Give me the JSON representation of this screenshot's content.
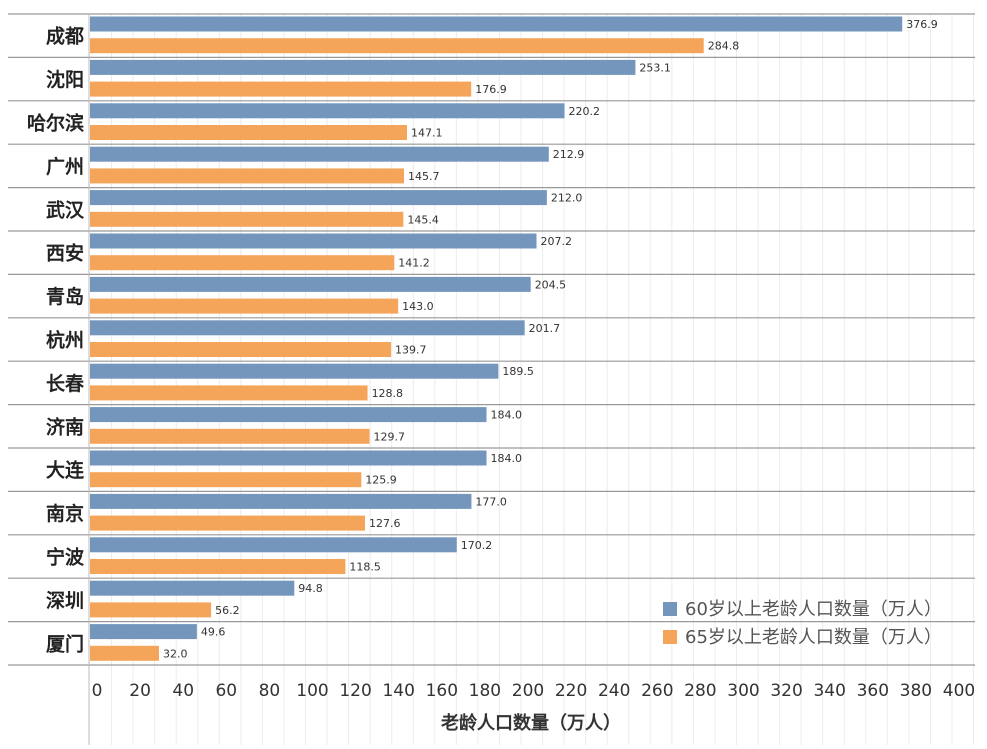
{
  "chart_data": {
    "type": "bar",
    "orientation": "horizontal",
    "categories": [
      "成都",
      "沈阳",
      "哈尔滨",
      "广州",
      "武汉",
      "西安",
      "青岛",
      "杭州",
      "长春",
      "济南",
      "大连",
      "南京",
      "宁波",
      "深圳",
      "厦门"
    ],
    "series": [
      {
        "name": "60岁以上老龄人口数量（万人）",
        "color": "#7496bd",
        "values": [
          376.9,
          253.1,
          220.2,
          212.9,
          212.0,
          207.2,
          204.5,
          201.7,
          189.5,
          184.0,
          184.0,
          177.0,
          170.2,
          94.8,
          49.6
        ]
      },
      {
        "name": "65岁以上老龄人口数量（万人）",
        "color": "#f5a55a",
        "values": [
          284.8,
          176.9,
          147.1,
          145.7,
          145.4,
          141.2,
          143.0,
          139.7,
          128.8,
          129.7,
          125.9,
          127.6,
          118.5,
          56.2,
          32.0
        ]
      }
    ],
    "xlabel": "老龄人口数量（万人）",
    "xlim": [
      0,
      400
    ],
    "xticks": [
      0,
      20,
      40,
      60,
      80,
      100,
      120,
      140,
      160,
      180,
      200,
      220,
      240,
      260,
      280,
      300,
      320,
      340,
      360,
      380,
      400
    ],
    "grid": true,
    "legend_position": "bottom-right"
  }
}
